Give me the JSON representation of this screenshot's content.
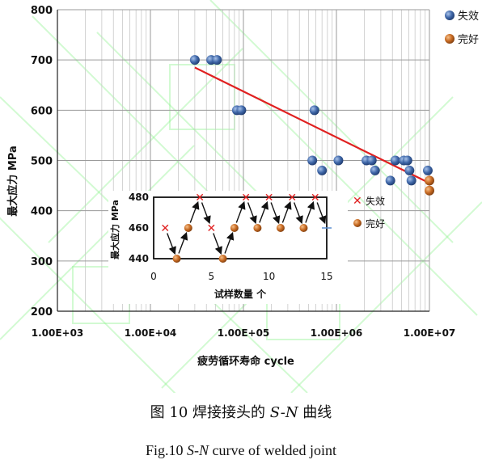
{
  "chart_data": [
    {
      "type": "scatter",
      "title": "",
      "xlabel": "疲劳循环寿命 cycle",
      "ylabel": "最大应力 MPa",
      "xscale": "log",
      "xlim": [
        1000,
        10000000
      ],
      "ylim": [
        200,
        800
      ],
      "x_ticks": [
        "1.00E+03",
        "1.00E+04",
        "1.00E+05",
        "1.00E+06",
        "1.00E+07"
      ],
      "y_ticks": [
        200,
        300,
        400,
        500,
        600,
        700,
        800
      ],
      "grid": true,
      "legend_position": "top-right",
      "series": [
        {
          "name": "失效",
          "color": "#3b5f9a",
          "points": [
            [
              30000,
              700
            ],
            [
              45000,
              700
            ],
            [
              52000,
              700
            ],
            [
              85000,
              600
            ],
            [
              95000,
              600
            ],
            [
              580000,
              600
            ],
            [
              550000,
              500
            ],
            [
              700000,
              480
            ],
            [
              1050000,
              500
            ],
            [
              2100000,
              500
            ],
            [
              2400000,
              500
            ],
            [
              2600000,
              480
            ],
            [
              3800000,
              460
            ],
            [
              4300000,
              500
            ],
            [
              5300000,
              500
            ],
            [
              5800000,
              500
            ],
            [
              6100000,
              480
            ],
            [
              6400000,
              460
            ],
            [
              9600000,
              480
            ]
          ]
        },
        {
          "name": "完好",
          "color": "#c0661f",
          "points": [
            [
              10000000,
              460
            ],
            [
              10000000,
              440
            ]
          ]
        }
      ],
      "trendline": {
        "color": "#e02020",
        "points": [
          [
            30000,
            685
          ],
          [
            10000000,
            455
          ]
        ]
      }
    },
    {
      "type": "scatter",
      "title": "",
      "xlabel": "试样数量 个",
      "ylabel": "最大应力 MPa",
      "xlim": [
        0,
        15
      ],
      "ylim": [
        440,
        480
      ],
      "x_ticks": [
        0,
        5,
        10,
        15
      ],
      "y_ticks": [
        440,
        460,
        480
      ],
      "legend_position": "right",
      "series": [
        {
          "name": "失效",
          "color": "#e02020",
          "marker": "x",
          "points": [
            [
              1,
              460
            ],
            [
              4,
              480
            ],
            [
              5,
              460
            ],
            [
              8,
              480
            ],
            [
              10,
              480
            ],
            [
              12,
              480
            ],
            [
              14,
              480
            ]
          ]
        },
        {
          "name": "完好",
          "color": "#c0661f",
          "marker": "circle",
          "points": [
            [
              2,
              440
            ],
            [
              3,
              460
            ],
            [
              6,
              440
            ],
            [
              7,
              460
            ],
            [
              9,
              460
            ],
            [
              11,
              460
            ],
            [
              13,
              460
            ]
          ]
        }
      ],
      "arrows": [
        [
          1,
          2
        ],
        [
          2,
          3
        ],
        [
          3,
          4
        ],
        [
          4,
          5
        ],
        [
          5,
          6
        ],
        [
          6,
          7
        ],
        [
          7,
          8
        ],
        [
          8,
          9
        ],
        [
          9,
          10
        ],
        [
          10,
          11
        ],
        [
          11,
          12
        ],
        [
          12,
          13
        ],
        [
          13,
          14
        ],
        [
          14,
          15
        ]
      ]
    }
  ],
  "caption": {
    "chinese_prefix": "图 10  焊接接头的 ",
    "chinese_sn": "S-N",
    "chinese_suffix": " 曲线",
    "english_prefix": "Fig.10 ",
    "english_sn": "S-N",
    "english_suffix": " curve of welded joint"
  }
}
